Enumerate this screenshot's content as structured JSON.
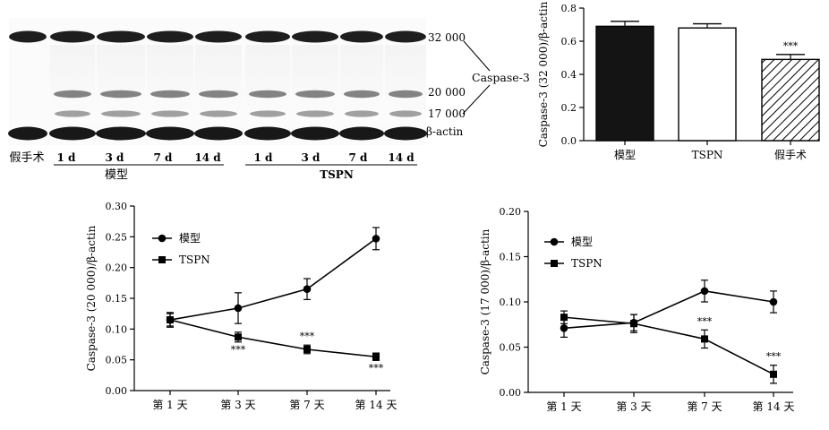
{
  "blot": {
    "band_labels": [
      "32 000",
      "20 000",
      "17 000",
      "β-actin"
    ],
    "protein_label": "Caspase-3",
    "lanes": [
      "假手术",
      "1 d",
      "3 d",
      "7 d",
      "14 d",
      "1 d",
      "3 d",
      "7 d",
      "14 d"
    ],
    "groups": [
      "模型",
      "TSPN"
    ]
  },
  "chart_data": [
    {
      "type": "bar",
      "categories": [
        "模型",
        "TSPN",
        "假手术"
      ],
      "values": [
        0.69,
        0.68,
        0.49
      ],
      "errors": [
        0.03,
        0.025,
        0.03
      ],
      "fills": [
        "solid-black",
        "white",
        "hatched"
      ],
      "annotations": [
        "",
        "",
        "***"
      ],
      "ylabel": "Caspase-3 (32 000)/β-actin",
      "ylim": [
        0,
        0.8
      ],
      "yticks": [
        "0.0",
        "0.2",
        "0.4",
        "0.6",
        "0.8"
      ]
    },
    {
      "type": "line",
      "x": [
        "第 1 天",
        "第 3 天",
        "第 7 天",
        "第 14 天"
      ],
      "series": [
        {
          "name": "模型",
          "marker": "circle",
          "values": [
            0.115,
            0.134,
            0.165,
            0.247
          ],
          "errors": [
            0.012,
            0.025,
            0.017,
            0.018
          ]
        },
        {
          "name": "TSPN",
          "marker": "square",
          "values": [
            0.115,
            0.087,
            0.067,
            0.055
          ],
          "errors": [
            0.01,
            0.008,
            0.007,
            0.006
          ],
          "annotations": [
            "",
            "***",
            "***",
            "***"
          ]
        }
      ],
      "ylabel": "Caspase-3 (20 000)/β-actin",
      "ylim": [
        0,
        0.3
      ],
      "yticks": [
        "0.00",
        "0.05",
        "0.10",
        "0.15",
        "0.20",
        "0.25",
        "0.30"
      ],
      "legend": "top-left"
    },
    {
      "type": "line",
      "x": [
        "第 1 天",
        "第 3 天",
        "第 7 天",
        "第 14 天"
      ],
      "series": [
        {
          "name": "模型",
          "marker": "circle",
          "values": [
            0.071,
            0.077,
            0.112,
            0.1
          ],
          "errors": [
            0.01,
            0.009,
            0.012,
            0.012
          ]
        },
        {
          "name": "TSPN",
          "marker": "square",
          "values": [
            0.083,
            0.076,
            0.059,
            0.02
          ],
          "errors": [
            0.007,
            0.01,
            0.01,
            0.01
          ],
          "annotations": [
            "",
            "",
            "***",
            "***"
          ]
        }
      ],
      "ylabel": "Caspase-3 (17 000)/β-actin",
      "ylim": [
        0,
        0.2
      ],
      "yticks": [
        "0.00",
        "0.05",
        "0.10",
        "0.15",
        "0.20"
      ],
      "legend": "top-left"
    }
  ]
}
